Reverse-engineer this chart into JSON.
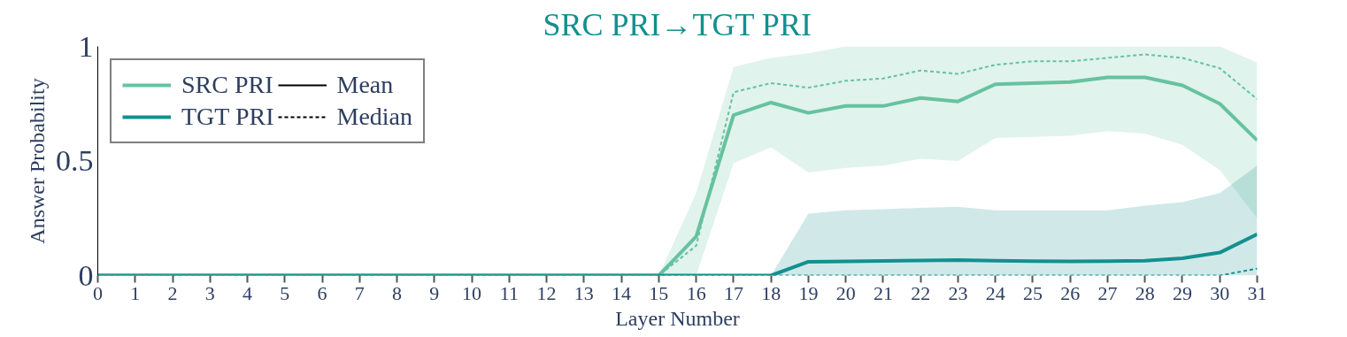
{
  "chart_data": {
    "type": "line",
    "title": "SRC PRI→TGT PRI",
    "xlabel": "Layer Number",
    "ylabel": "Answer Probability",
    "x": [
      0,
      1,
      2,
      3,
      4,
      5,
      6,
      7,
      8,
      9,
      10,
      11,
      12,
      13,
      14,
      15,
      16,
      17,
      18,
      19,
      20,
      21,
      22,
      23,
      24,
      25,
      26,
      27,
      28,
      29,
      30,
      31
    ],
    "xlim": [
      0,
      31
    ],
    "xticks": [
      0,
      1,
      2,
      3,
      4,
      5,
      6,
      7,
      8,
      9,
      10,
      11,
      12,
      13,
      14,
      15,
      16,
      17,
      18,
      19,
      20,
      21,
      22,
      23,
      24,
      25,
      26,
      27,
      28,
      29,
      30,
      31
    ],
    "ylim": [
      0,
      1
    ],
    "yticks": [
      0,
      0.5,
      1
    ],
    "series": [
      {
        "name": "SRC PRI",
        "color": "#66c2a0",
        "line_style": "solid",
        "values": [
          0,
          0,
          0,
          0,
          0,
          0,
          0,
          0,
          0,
          0,
          0,
          0,
          0,
          0,
          0,
          0,
          0.17,
          0.7,
          0.755,
          0.71,
          0.74,
          0.74,
          0.775,
          0.76,
          0.835,
          0.84,
          0.845,
          0.865,
          0.865,
          0.83,
          0.75,
          0.59
        ],
        "lower": [
          0,
          0,
          0,
          0,
          0,
          0,
          0,
          0,
          0,
          0,
          0,
          0,
          0,
          0,
          0,
          0,
          0,
          0.49,
          0.56,
          0.45,
          0.47,
          0.48,
          0.51,
          0.5,
          0.6,
          0.605,
          0.61,
          0.63,
          0.62,
          0.57,
          0.46,
          0.25
        ],
        "upper": [
          0,
          0,
          0,
          0,
          0,
          0,
          0,
          0,
          0,
          0,
          0,
          0,
          0,
          0,
          0,
          0,
          0.36,
          0.91,
          0.95,
          0.97,
          1,
          1,
          1,
          1,
          1,
          1,
          1,
          1,
          1,
          1,
          1,
          0.93
        ]
      },
      {
        "name": "TGT PRI",
        "color": "#12908e",
        "line_style": "solid",
        "values": [
          0,
          0,
          0,
          0,
          0,
          0,
          0,
          0,
          0,
          0,
          0,
          0,
          0,
          0,
          0,
          0,
          0,
          0,
          0,
          0.06,
          0.062,
          0.064,
          0.066,
          0.068,
          0.065,
          0.063,
          0.062,
          0.063,
          0.065,
          0.075,
          0.1,
          0.18
        ],
        "lower": [
          0,
          0,
          0,
          0,
          0,
          0,
          0,
          0,
          0,
          0,
          0,
          0,
          0,
          0,
          0,
          0,
          0,
          0,
          0,
          0,
          0,
          0,
          0,
          0,
          0,
          0,
          0,
          0,
          0,
          0,
          0,
          0
        ],
        "upper": [
          0,
          0,
          0,
          0,
          0,
          0,
          0,
          0,
          0,
          0,
          0,
          0,
          0,
          0,
          0,
          0,
          0,
          0,
          0,
          0.27,
          0.285,
          0.29,
          0.295,
          0.3,
          0.285,
          0.285,
          0.285,
          0.285,
          0.305,
          0.32,
          0.36,
          0.48
        ]
      },
      {
        "color": "#66c2a0",
        "line_style": "dashed",
        "values": [
          0,
          0,
          0,
          0,
          0,
          0,
          0,
          0,
          0,
          0,
          0,
          0,
          0,
          0,
          0,
          0,
          0.13,
          0.8,
          0.84,
          0.82,
          0.85,
          0.86,
          0.895,
          0.88,
          0.92,
          0.935,
          0.935,
          0.95,
          0.965,
          0.95,
          0.905,
          0.77
        ]
      },
      {
        "color": "#12908e",
        "line_style": "dashed",
        "values": [
          0,
          0,
          0,
          0,
          0,
          0,
          0,
          0,
          0,
          0,
          0,
          0,
          0,
          0,
          0,
          0,
          0,
          0,
          0,
          0,
          0,
          0,
          0,
          0,
          0,
          0,
          0,
          0,
          0,
          0,
          0,
          0.03
        ]
      }
    ],
    "annotations": [
      "Mean",
      "Median"
    ],
    "legend": "top left",
    "grid": false
  }
}
